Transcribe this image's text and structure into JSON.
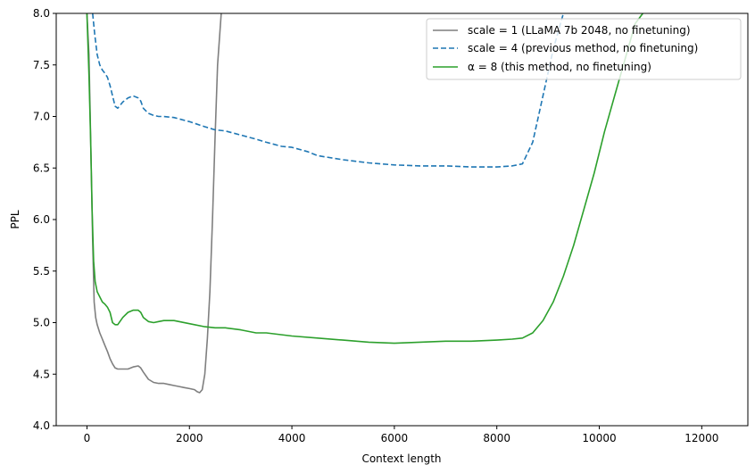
{
  "chart_data": {
    "type": "line",
    "title": "",
    "xlabel": "Context length",
    "ylabel": "PPL",
    "xlim": [
      -600,
      12900
    ],
    "ylim": [
      4.0,
      8.0
    ],
    "xticks": [
      0,
      2000,
      4000,
      6000,
      8000,
      10000,
      12000
    ],
    "yticks": [
      4.0,
      4.5,
      5.0,
      5.5,
      6.0,
      6.5,
      7.0,
      7.5,
      8.0
    ],
    "xtick_labels": [
      "0",
      "2000",
      "4000",
      "6000",
      "8000",
      "10000",
      "12000"
    ],
    "ytick_labels": [
      "4.0",
      "4.5",
      "5.0",
      "5.5",
      "6.0",
      "6.5",
      "7.0",
      "7.5",
      "8.0"
    ],
    "grid": false,
    "legend": "top-right",
    "series": [
      {
        "name": "scale = 1 (LLaMA 7b 2048, no finetuning)",
        "color": "#7f7f7f",
        "dash": "solid",
        "x": [
          0,
          40,
          80,
          110,
          140,
          170,
          200,
          250,
          300,
          350,
          400,
          450,
          500,
          550,
          600,
          700,
          800,
          900,
          1000,
          1050,
          1100,
          1200,
          1300,
          1400,
          1500,
          1600,
          1700,
          1800,
          1900,
          2000,
          2100,
          2150,
          2200,
          2250,
          2300,
          2350,
          2400,
          2450,
          2500,
          2550,
          2620
        ],
        "y": [
          8.0,
          7.6,
          6.6,
          5.8,
          5.2,
          5.05,
          4.98,
          4.9,
          4.84,
          4.78,
          4.72,
          4.65,
          4.6,
          4.56,
          4.55,
          4.55,
          4.55,
          4.57,
          4.58,
          4.56,
          4.52,
          4.45,
          4.42,
          4.41,
          4.41,
          4.4,
          4.39,
          4.38,
          4.37,
          4.36,
          4.35,
          4.33,
          4.32,
          4.35,
          4.5,
          4.85,
          5.3,
          6.0,
          6.8,
          7.5,
          8.0
        ]
      },
      {
        "name": "scale = 4 (previous method, no finetuning)",
        "color": "#1f77b4",
        "dash": "dashed",
        "x": [
          110,
          150,
          200,
          250,
          300,
          350,
          400,
          450,
          500,
          550,
          600,
          700,
          800,
          900,
          1000,
          1050,
          1100,
          1200,
          1300,
          1400,
          1500,
          1700,
          2000,
          2300,
          2500,
          2700,
          3000,
          3300,
          3500,
          3800,
          4000,
          4300,
          4500,
          5000,
          5500,
          6000,
          6500,
          7000,
          7500,
          8000,
          8300,
          8500,
          8700,
          8900,
          9100,
          9300
        ],
        "y": [
          8.0,
          7.8,
          7.6,
          7.5,
          7.45,
          7.42,
          7.38,
          7.3,
          7.2,
          7.1,
          7.08,
          7.14,
          7.18,
          7.2,
          7.18,
          7.15,
          7.08,
          7.03,
          7.01,
          7.0,
          7.0,
          6.99,
          6.95,
          6.9,
          6.87,
          6.86,
          6.82,
          6.78,
          6.75,
          6.71,
          6.7,
          6.66,
          6.62,
          6.58,
          6.55,
          6.53,
          6.52,
          6.52,
          6.51,
          6.51,
          6.52,
          6.54,
          6.75,
          7.2,
          7.65,
          8.0
        ]
      },
      {
        "name": "α = 8 (this method, no finetuning)",
        "color": "#2ca02c",
        "dash": "solid",
        "x": [
          0,
          40,
          70,
          100,
          130,
          160,
          200,
          250,
          300,
          350,
          400,
          450,
          500,
          550,
          600,
          700,
          800,
          900,
          1000,
          1050,
          1100,
          1200,
          1300,
          1400,
          1500,
          1700,
          2000,
          2300,
          2500,
          2700,
          3000,
          3300,
          3500,
          4000,
          4500,
          5000,
          5500,
          6000,
          6500,
          7000,
          7500,
          8000,
          8300,
          8500,
          8700,
          8900,
          9100,
          9300,
          9500,
          9700,
          9900,
          10100,
          10300,
          10500,
          10700,
          10850
        ],
        "y": [
          8.0,
          7.4,
          6.8,
          6.1,
          5.6,
          5.4,
          5.3,
          5.25,
          5.2,
          5.18,
          5.15,
          5.1,
          5.0,
          4.98,
          4.98,
          5.05,
          5.1,
          5.12,
          5.12,
          5.1,
          5.05,
          5.01,
          5.0,
          5.01,
          5.02,
          5.02,
          4.99,
          4.96,
          4.95,
          4.95,
          4.93,
          4.9,
          4.9,
          4.87,
          4.85,
          4.83,
          4.81,
          4.8,
          4.81,
          4.82,
          4.82,
          4.83,
          4.84,
          4.85,
          4.9,
          5.02,
          5.2,
          5.45,
          5.75,
          6.1,
          6.45,
          6.85,
          7.2,
          7.55,
          7.9,
          8.0
        ]
      }
    ]
  }
}
